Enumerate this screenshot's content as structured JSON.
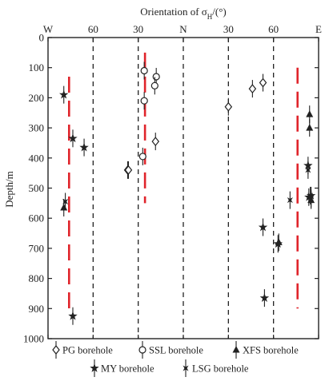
{
  "chart_data": {
    "type": "scatter",
    "title_prefix": "Orientation of σ",
    "title_sub": "H",
    "title_suffix": "/(°)",
    "ylabel": "Depth/m",
    "ylim": [
      0,
      1000
    ],
    "y_ticks": [
      0,
      100,
      200,
      300,
      400,
      500,
      600,
      700,
      800,
      900,
      1000
    ],
    "xlim": [
      -90,
      90
    ],
    "x_ticks": [
      {
        "value": -90,
        "label": "W"
      },
      {
        "value": -60,
        "label": "60"
      },
      {
        "value": -30,
        "label": "30"
      },
      {
        "value": 0,
        "label": "N"
      },
      {
        "value": 30,
        "label": "30"
      },
      {
        "value": 60,
        "label": "60"
      },
      {
        "value": 90,
        "label": "E"
      }
    ],
    "grid": "dashed vertical lines at 60°W, 30°W, N, 30°E, 60°E",
    "mean_lines": [
      {
        "x": -76,
        "y_from": 130,
        "y_to": 900
      },
      {
        "x": -25.5,
        "y_from": 50,
        "y_to": 550
      },
      {
        "x": 76,
        "y_from": 100,
        "y_to": 900
      }
    ],
    "series": [
      {
        "name": "PG borehole",
        "marker": "diamond",
        "points": [
          [
            -37,
            440
          ],
          [
            -36.5,
            440
          ],
          [
            -18.5,
            345
          ],
          [
            30,
            230
          ],
          [
            46,
            170
          ],
          [
            53,
            150
          ]
        ]
      },
      {
        "name": "SSL borehole",
        "marker": "circle",
        "points": [
          [
            -26,
            110
          ],
          [
            -26,
            210
          ],
          [
            -18,
            130
          ],
          [
            -19,
            160
          ],
          [
            -27,
            395
          ]
        ]
      },
      {
        "name": "XFS borehole",
        "marker": "triangle",
        "points": [
          [
            -79.5,
            565
          ],
          [
            63.5,
            680
          ],
          [
            84,
            255
          ],
          [
            84,
            300
          ],
          [
            85,
            540
          ]
        ]
      },
      {
        "name": "MY borehole",
        "marker": "star",
        "points": [
          [
            -79.5,
            190
          ],
          [
            -73.5,
            335
          ],
          [
            -66,
            365
          ],
          [
            -73.5,
            925
          ],
          [
            53,
            630
          ],
          [
            54,
            865
          ],
          [
            63,
            685
          ],
          [
            83,
            425
          ],
          [
            83.5,
            530
          ],
          [
            85,
            525
          ]
        ]
      },
      {
        "name": "LSG borehole",
        "marker": "x-star",
        "points": [
          [
            -78.5,
            545
          ],
          [
            83,
            440
          ],
          [
            84.5,
            525
          ],
          [
            85,
            535
          ],
          [
            71,
            540
          ]
        ]
      }
    ]
  }
}
